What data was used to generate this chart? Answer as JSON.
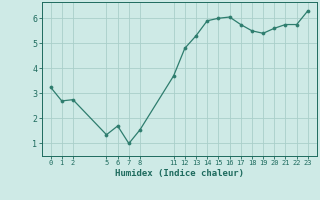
{
  "x": [
    0,
    1,
    2,
    5,
    6,
    7,
    8,
    11,
    12,
    13,
    14,
    15,
    16,
    17,
    18,
    19,
    20,
    21,
    22,
    23
  ],
  "y": [
    3.25,
    2.7,
    2.75,
    1.35,
    1.7,
    1.0,
    1.55,
    3.7,
    4.8,
    5.3,
    5.9,
    6.0,
    6.05,
    5.75,
    5.5,
    5.4,
    5.6,
    5.75,
    5.75,
    6.3
  ],
  "line_color": "#2e7d6e",
  "marker_color": "#2e7d6e",
  "bg_color": "#ceeae6",
  "grid_color": "#aacfca",
  "axis_label_color": "#1e6b5e",
  "tick_color": "#1e6b5e",
  "xlabel": "Humidex (Indice chaleur)",
  "xticks": [
    0,
    1,
    2,
    5,
    6,
    7,
    8,
    11,
    12,
    13,
    14,
    15,
    16,
    17,
    18,
    19,
    20,
    21,
    22,
    23
  ],
  "yticks": [
    1,
    2,
    3,
    4,
    5,
    6
  ],
  "ylim": [
    0.5,
    6.65
  ],
  "xlim": [
    -0.8,
    23.8
  ]
}
